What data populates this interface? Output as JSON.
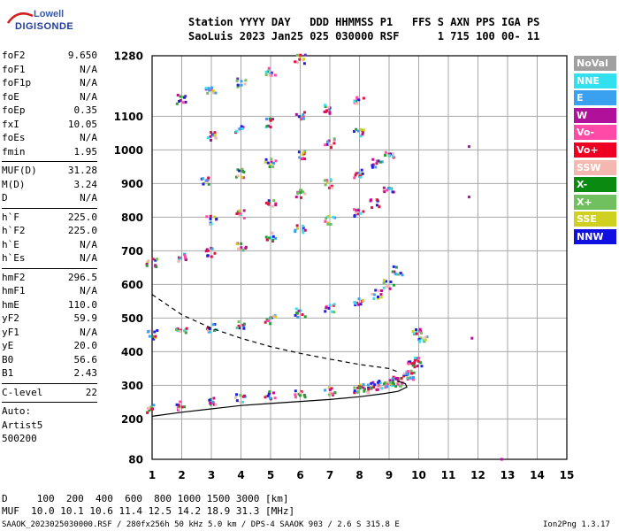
{
  "logo": {
    "line1": "Lowell",
    "line2": "DIGISONDE"
  },
  "header": {
    "row1": "Station YYYY DAY   DDD HHMMSS P1   FFS S AXN PPS IGA PS",
    "row2": "SaoLuis 2023 Jan25 025 030000 RSF      1 715 100 00- 11"
  },
  "params": {
    "group1": [
      {
        "k": "foF2",
        "v": "9.650"
      },
      {
        "k": "foF1",
        "v": "N/A"
      },
      {
        "k": "foF1p",
        "v": "N/A"
      },
      {
        "k": "foE",
        "v": "N/A"
      },
      {
        "k": "foEp",
        "v": "0.35"
      },
      {
        "k": "fxI",
        "v": "10.05"
      },
      {
        "k": "foEs",
        "v": "N/A"
      },
      {
        "k": "fmin",
        "v": "1.95"
      }
    ],
    "group2": [
      {
        "k": "MUF(D)",
        "v": "31.28"
      },
      {
        "k": "M(D)",
        "v": "3.24"
      },
      {
        "k": "D",
        "v": "N/A"
      }
    ],
    "group3": [
      {
        "k": "h`F",
        "v": "225.0"
      },
      {
        "k": "h`F2",
        "v": "225.0"
      },
      {
        "k": "h`E",
        "v": "N/A"
      },
      {
        "k": "h`Es",
        "v": "N/A"
      }
    ],
    "group4": [
      {
        "k": "hmF2",
        "v": "296.5"
      },
      {
        "k": "hmF1",
        "v": "N/A"
      },
      {
        "k": "hmE",
        "v": "110.0"
      },
      {
        "k": "yF2",
        "v": "59.9"
      },
      {
        "k": "yF1",
        "v": "N/A"
      },
      {
        "k": "yE",
        "v": "20.0"
      },
      {
        "k": "B0",
        "v": "56.6"
      },
      {
        "k": "B1",
        "v": "2.43"
      }
    ],
    "group5": [
      {
        "k": "C-level",
        "v": "22"
      }
    ],
    "footer_lines": [
      "Auto:",
      "Artist5",
      "500200"
    ]
  },
  "legend": [
    {
      "label": "NoVal",
      "color": "#a0a0a0"
    },
    {
      "label": "NNE",
      "color": "#33e0f0"
    },
    {
      "label": "E",
      "color": "#3aa0f0"
    },
    {
      "label": "W",
      "color": "#b0109a"
    },
    {
      "label": "Vo-",
      "color": "#ff4aa8"
    },
    {
      "label": "Vo+",
      "color": "#ee0022"
    },
    {
      "label": "SSW",
      "color": "#f4b8b0"
    },
    {
      "label": "X-",
      "color": "#0a8a10"
    },
    {
      "label": "X+",
      "color": "#70c060"
    },
    {
      "label": "SSE",
      "color": "#d0d020"
    },
    {
      "label": "NNW",
      "color": "#1010e0"
    }
  ],
  "footer": {
    "row1": "D     100  200  400  600  800 1000 1500 3000 [km]",
    "row2": "MUF  10.0 10.1 10.6 11.4 12.5 14.2 18.9 31.3 [MHz]",
    "row3": "SAAOK_2023025030000.RSF / 280fx256h 50 kHz 5.0 km / DPS-4 SAAOK 903 / 2.6 S 315.8 E",
    "version": "Ion2Png 1.3.17"
  },
  "chart_data": {
    "type": "scatter",
    "xlim": [
      1,
      15
    ],
    "ylim": [
      80,
      1280
    ],
    "x_ticks": [
      1,
      2,
      3,
      4,
      5,
      6,
      7,
      8,
      9,
      10,
      11,
      12,
      13,
      14,
      15
    ],
    "y_ticks": [
      80,
      200,
      300,
      400,
      500,
      600,
      700,
      800,
      900,
      1000,
      1100,
      1280
    ],
    "grid": true,
    "traces": [
      {
        "name": "F2-o-1st",
        "color": "#e01040",
        "x": [
          1.0,
          2.0,
          3.0,
          4.0,
          5.0,
          6.0,
          7.0,
          8.0,
          8.5,
          9.0,
          9.3,
          9.6,
          9.8,
          9.95
        ],
        "y": [
          230,
          240,
          252,
          260,
          268,
          275,
          282,
          290,
          296,
          305,
          315,
          330,
          360,
          460
        ]
      },
      {
        "name": "F2-x-1st",
        "color": "#2a9a3a",
        "x": [
          8.2,
          8.8,
          9.3,
          9.7,
          10.0,
          10.15
        ],
        "y": [
          290,
          300,
          310,
          330,
          370,
          440
        ]
      },
      {
        "name": "F2-o-2nd",
        "color": "#2020e0",
        "x": [
          1.0,
          2.0,
          3.0,
          4.0,
          5.0,
          6.0,
          7.0,
          8.0,
          8.6,
          9.0,
          9.3
        ],
        "y": [
          450,
          458,
          470,
          480,
          495,
          515,
          530,
          550,
          570,
          600,
          640
        ]
      },
      {
        "name": "F2-o-3rd",
        "color": "#c01090",
        "x": [
          1.0,
          2.0,
          3.0,
          4.0,
          5.0,
          6.0,
          7.0,
          8.0,
          8.5,
          9.0
        ],
        "y": [
          665,
          680,
          695,
          710,
          740,
          765,
          790,
          815,
          840,
          880
        ]
      },
      {
        "name": "F2-o-4th",
        "color": "#e02060",
        "x": [
          3.0,
          4.0,
          5.0,
          6.0,
          7.0,
          8.0,
          8.6,
          9.0
        ],
        "y": [
          790,
          810,
          840,
          870,
          900,
          930,
          960,
          990
        ]
      },
      {
        "name": "F2-o-5th",
        "color": "#c02080",
        "x": [
          2.8,
          4.0,
          5.0,
          6.0,
          7.0,
          8.0
        ],
        "y": [
          905,
          930,
          960,
          985,
          1020,
          1050
        ]
      },
      {
        "name": "F2-o-6th",
        "color": "#a010a0",
        "x": [
          3.0,
          4.0,
          5.0,
          6.0,
          7.0,
          8.0
        ],
        "y": [
          1040,
          1060,
          1080,
          1100,
          1120,
          1150
        ]
      },
      {
        "name": "F2-o-7th",
        "color": "#6030c0",
        "x": [
          2.0,
          3.0,
          4.0,
          5.0,
          6.0
        ],
        "y": [
          1150,
          1175,
          1200,
          1230,
          1270
        ]
      },
      {
        "name": "isolated",
        "color": "#b0109a",
        "x": [
          11.7,
          11.7,
          11.8,
          12.8
        ],
        "y": [
          1010,
          860,
          440,
          80
        ]
      }
    ],
    "curves": [
      {
        "name": "profile",
        "style": "solid",
        "x": [
          1.0,
          2.0,
          3.0,
          4.0,
          5.0,
          6.0,
          7.0,
          8.0,
          8.8,
          9.3,
          9.6,
          9.55,
          9.3
        ],
        "y": [
          208,
          220,
          230,
          240,
          246,
          252,
          258,
          266,
          275,
          282,
          295,
          305,
          312
        ]
      },
      {
        "name": "muf",
        "style": "dashed",
        "x": [
          1.0,
          1.5,
          2.0,
          3.0,
          4.0,
          5.0,
          6.0,
          7.0,
          8.0,
          9.0,
          9.3
        ],
        "y": [
          570,
          540,
          510,
          470,
          440,
          415,
          395,
          378,
          362,
          350,
          340
        ]
      }
    ]
  }
}
